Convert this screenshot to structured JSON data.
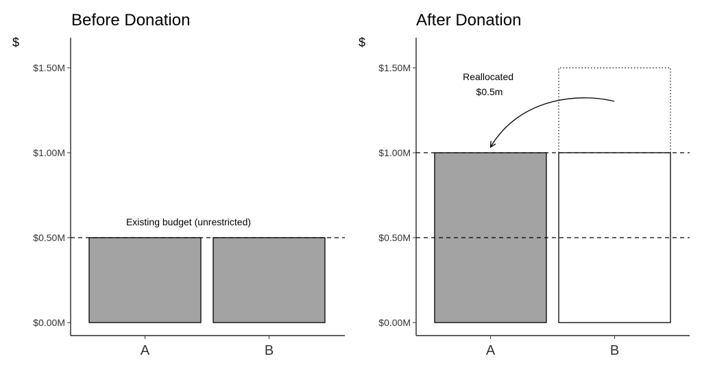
{
  "chart_data": [
    {
      "type": "bar",
      "title": "Before Donation",
      "ylabel": "$",
      "xlabel": "",
      "categories": [
        "A",
        "B"
      ],
      "values": [
        0.5,
        0.5
      ],
      "ylim": [
        0,
        1.6
      ],
      "yticks": [
        0,
        0.5,
        1.0,
        1.5
      ],
      "ytick_labels": [
        "$0.00M",
        "$0.50M",
        "$1.00M",
        "$1.50M"
      ],
      "reference_lines": [
        0.5
      ],
      "annotation": "Existing budget (unrestricted)",
      "grid": false
    },
    {
      "type": "bar",
      "title": "After Donation",
      "ylabel": "$",
      "xlabel": "",
      "categories": [
        "A",
        "B"
      ],
      "values": [
        1.0,
        1.0
      ],
      "outline_values": [
        null,
        1.5
      ],
      "ylim": [
        0,
        1.6
      ],
      "yticks": [
        0,
        0.5,
        1.0,
        1.5
      ],
      "ytick_labels": [
        "$0.00M",
        "$0.50M",
        "$1.00M",
        "$1.50M"
      ],
      "reference_lines": [
        0.5,
        1.0
      ],
      "annotation": "Reallocated\n$0.5m",
      "grid": false
    }
  ],
  "colors": {
    "filled_bar": "#a3a3a3",
    "open_bar": "#ffffff",
    "outline": "#000000"
  }
}
